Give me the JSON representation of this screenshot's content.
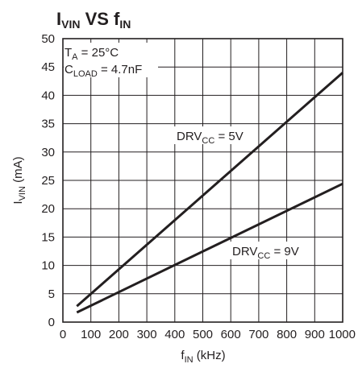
{
  "chart_data": {
    "type": "line",
    "title": {
      "main": "I",
      "main_sub": "VIN",
      "mid": " VS f",
      "mid_sub": "IN"
    },
    "xlabel": {
      "pre": "f",
      "sub": "IN",
      "post": " (kHz)"
    },
    "ylabel": {
      "pre": "I",
      "sub": "VIN",
      "post": " (mA)"
    },
    "xlim": [
      0,
      1000
    ],
    "ylim": [
      0,
      50
    ],
    "xticks": [
      0,
      100,
      200,
      300,
      400,
      500,
      600,
      700,
      800,
      900,
      1000
    ],
    "yticks": [
      0,
      5,
      10,
      15,
      20,
      25,
      30,
      35,
      40,
      45,
      50
    ],
    "grid": true,
    "conditions": [
      {
        "pre": "T",
        "sub": "A",
        "post": " = 25°C"
      },
      {
        "pre": "C",
        "sub": "LOAD",
        "post": " = 4.7nF"
      }
    ],
    "series": [
      {
        "label_pre": "DRV",
        "label_sub": "CC",
        "label_post": " = 5V",
        "x": [
          50,
          1000
        ],
        "y": [
          2.8,
          44
        ]
      },
      {
        "label_pre": "DRV",
        "label_sub": "CC",
        "label_post": " = 9V",
        "x": [
          50,
          1000
        ],
        "y": [
          1.7,
          24.4
        ]
      }
    ]
  }
}
